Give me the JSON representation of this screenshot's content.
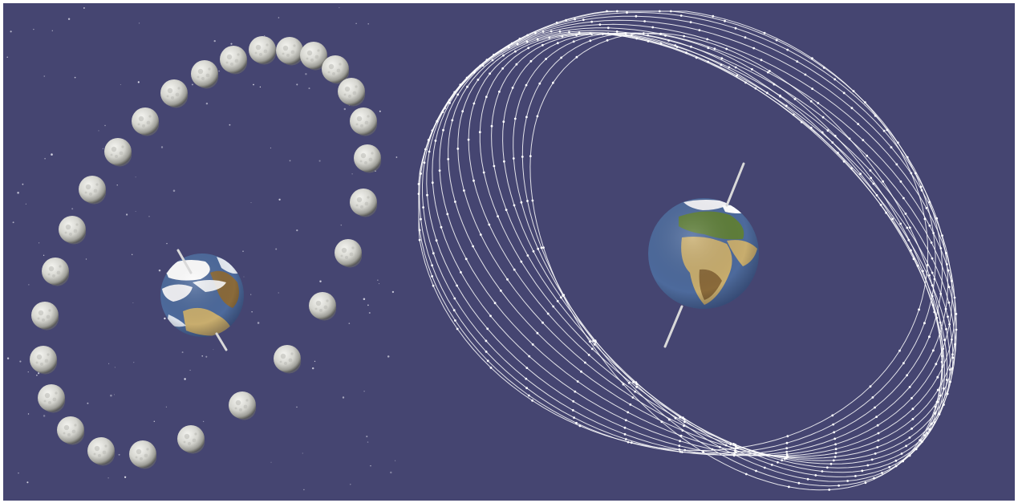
{
  "colors": {
    "frame": "#ffffff",
    "space": "#454571",
    "star": "#e6e6f0",
    "moon_light": "#eeeeea",
    "moon_mid": "#b8b8b2",
    "moon_dark": "#6d6d68",
    "orbit_line": "#ffffff",
    "axis": "#d9d9d9",
    "ocean": "#4d6a9c",
    "land_green": "#5f7f3a",
    "land_desert": "#c8ad6e",
    "land_brown": "#8a6a3a",
    "ice": "#f2f2f6",
    "cloud": "#ffffff"
  },
  "panels": [
    {
      "name": "moon-orbit-panel",
      "icons": [
        "moon-icon",
        "earth-icon",
        "earth-axis"
      ]
    },
    {
      "name": "orbit-trace-panel",
      "icons": [
        "orbit-line",
        "earth-icon",
        "earth-axis"
      ]
    }
  ]
}
